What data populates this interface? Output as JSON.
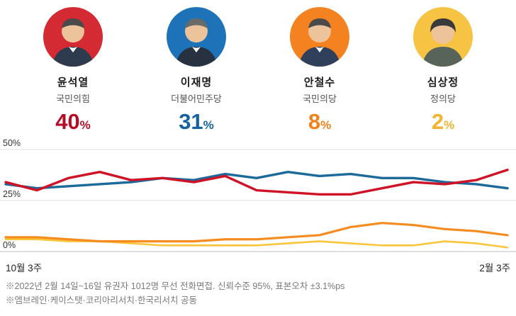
{
  "shared": {
    "percent_sign": "%"
  },
  "candidates": [
    {
      "name": "윤석열",
      "party": "국민의힘",
      "percent": "40",
      "percent_color": "#b50d27",
      "avatar_bg": "#d42a33"
    },
    {
      "name": "이재명",
      "party": "더불어민주당",
      "percent": "31",
      "percent_color": "#15629e",
      "avatar_bg": "#1e72b8"
    },
    {
      "name": "안철수",
      "party": "국민의당",
      "percent": "8",
      "percent_color": "#f0821e",
      "avatar_bg": "#f58220"
    },
    {
      "name": "심상정",
      "party": "정의당",
      "percent": "2",
      "percent_color": "#f0b42f",
      "avatar_bg": "#f6c343"
    }
  ],
  "chart_data": {
    "type": "line",
    "x_axis": "주차 (10월 3주 ~ 2월 3주)",
    "x_labels_visible": [
      "10월 3주",
      "2월 3주"
    ],
    "ylim": [
      0,
      50
    ],
    "yticks": [
      {
        "label": "50%",
        "value": 50
      },
      {
        "label": "25%",
        "value": 25
      },
      {
        "label": "0%",
        "value": 0
      }
    ],
    "grid": true,
    "legend": "none",
    "series": [
      {
        "key": "sim",
        "name": "심상정",
        "color": "#fbc53a",
        "width": 2.6,
        "values": [
          6,
          6,
          5,
          5,
          4,
          3,
          3,
          3,
          3,
          4,
          5,
          4,
          3,
          3,
          5,
          4,
          2
        ]
      },
      {
        "key": "ahn",
        "name": "안철수",
        "color": "#f68b1f",
        "width": 3.2,
        "values": [
          7,
          7,
          6,
          5,
          5,
          5,
          5,
          6,
          6,
          7,
          8,
          12,
          14,
          13,
          11,
          10,
          8
        ]
      },
      {
        "key": "lee",
        "name": "이재명",
        "color": "#1b6a9b",
        "width": 3.4,
        "values": [
          33,
          31,
          32,
          33,
          34,
          36,
          35,
          38,
          36,
          39,
          37,
          38,
          36,
          36,
          34,
          33,
          31
        ]
      },
      {
        "key": "yoon",
        "name": "윤석열",
        "color": "#cf1226",
        "width": 3.4,
        "values": [
          34,
          30,
          36,
          39,
          35,
          36,
          34,
          37,
          30,
          29,
          28,
          28,
          31,
          34,
          33,
          35,
          40
        ]
      }
    ]
  },
  "xlabels": {
    "left": "10월 3주",
    "right": "2월 3주"
  },
  "footnotes": [
    "※2022년 2월 14일~16일 유권자 1012명 무선 전화면접. 신뢰수준 95%, 표본오차 ±3.1%ps",
    "※엠브레인·케이스탯·코리아리서치·한국리서치 공동"
  ]
}
